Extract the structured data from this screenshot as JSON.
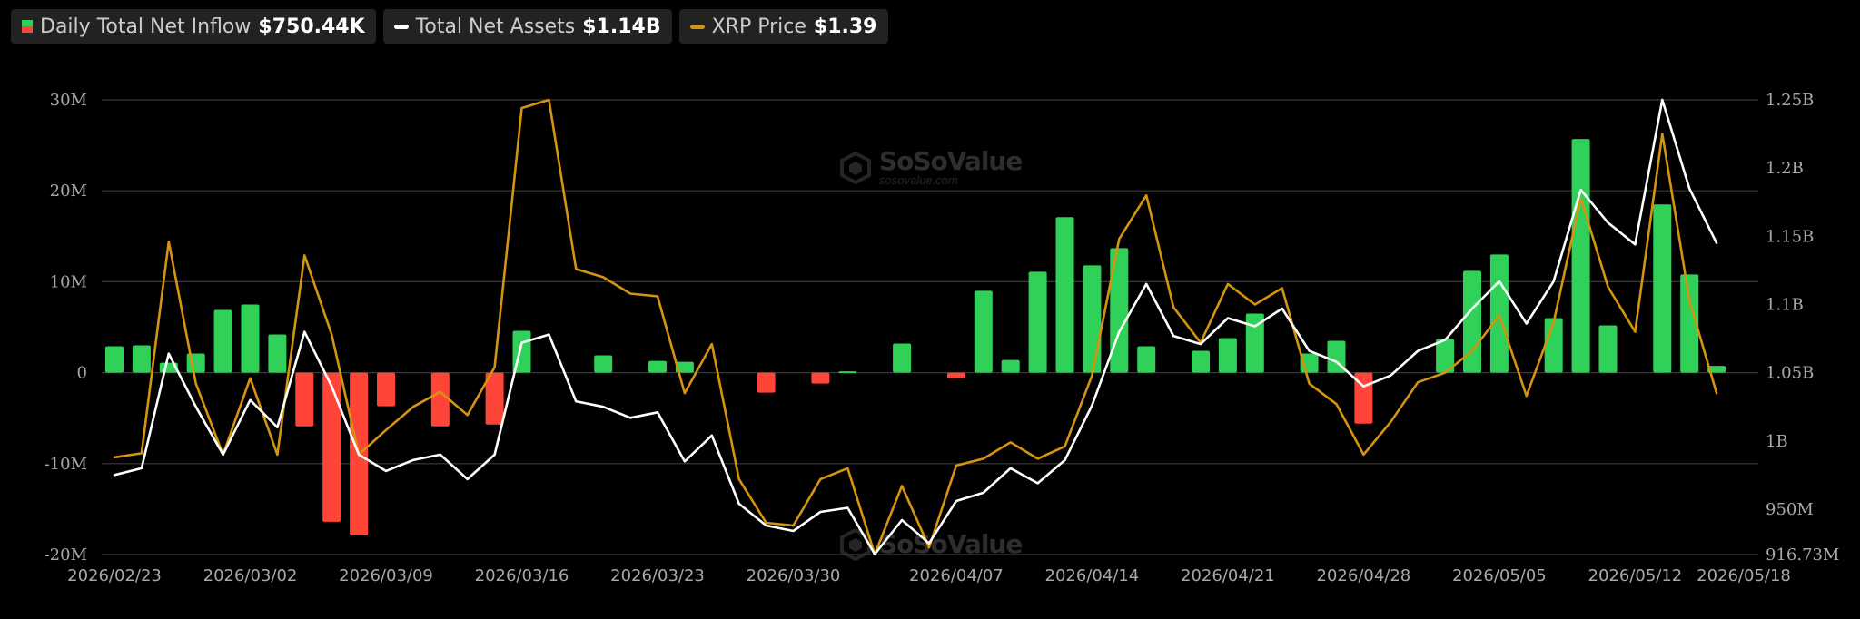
{
  "legend": {
    "inflow_label": "Daily Total Net Inflow",
    "inflow_value": "$750.44K",
    "assets_label": "Total Net Assets",
    "assets_value": "$1.14B",
    "price_label": "XRP Price",
    "price_value": "$1.39"
  },
  "watermark": {
    "name": "SoSoValue",
    "url": "sosovalue.com"
  },
  "colors": {
    "positive": "#2fd158",
    "negative": "#ff4438",
    "assets": "#ffffff",
    "price": "#d4940f",
    "grid": "#3a3a3a",
    "axis_text": "#a8a8a8"
  },
  "chart_data": {
    "type": "bar",
    "title": "",
    "x": [
      "2026/02/23",
      "2026/02/24",
      "2026/02/25",
      "2026/02/26",
      "2026/02/27",
      "2026/03/02",
      "2026/03/03",
      "2026/03/04",
      "2026/03/05",
      "2026/03/06",
      "2026/03/09",
      "2026/03/10",
      "2026/03/11",
      "2026/03/12",
      "2026/03/13",
      "2026/03/16",
      "2026/03/17",
      "2026/03/18",
      "2026/03/19",
      "2026/03/20",
      "2026/03/23",
      "2026/03/24",
      "2026/03/25",
      "2026/03/26",
      "2026/03/27",
      "2026/03/30",
      "2026/03/31",
      "2026/04/01",
      "2026/04/02",
      "2026/04/03",
      "2026/04/06",
      "2026/04/07",
      "2026/04/08",
      "2026/04/09",
      "2026/04/10",
      "2026/04/13",
      "2026/04/14",
      "2026/04/15",
      "2026/04/16",
      "2026/04/17",
      "2026/04/20",
      "2026/04/21",
      "2026/04/22",
      "2026/04/23",
      "2026/04/24",
      "2026/04/27",
      "2026/04/28",
      "2026/04/29",
      "2026/04/30",
      "2026/05/01",
      "2026/05/04",
      "2026/05/05",
      "2026/05/06",
      "2026/05/07",
      "2026/05/08",
      "2026/05/11",
      "2026/05/12",
      "2026/05/13",
      "2026/05/14",
      "2026/05/15",
      "2026/05/18"
    ],
    "x_ticks": [
      "2026/02/23",
      "2026/03/02",
      "2026/03/09",
      "2026/03/16",
      "2026/03/23",
      "2026/03/30",
      "2026/04/07",
      "2026/04/14",
      "2026/04/21",
      "2026/04/28",
      "2026/05/05",
      "2026/05/12",
      "2026/05/18"
    ],
    "left_axis": {
      "ylim": [
        -20000000,
        30000000
      ],
      "ticks": [
        "30M",
        "20M",
        "10M",
        "0",
        "-10M",
        "-20M"
      ]
    },
    "right_axis": {
      "ylim": [
        916730000,
        1250000000
      ],
      "ticks": [
        "1.25B",
        "1.2B",
        "1.15B",
        "1.1B",
        "1.05B",
        "1B",
        "950M",
        "916.73M"
      ]
    },
    "grid": true,
    "legend_position": "top-left",
    "series": [
      {
        "name": "Daily Total Net Inflow",
        "type": "bar",
        "axis": "left",
        "values": [
          2900000.0,
          3000000.0,
          1100000.0,
          2100000.0,
          6900000.0,
          7500000.0,
          4200000.0,
          -5900000.0,
          -16400000.0,
          -17900000.0,
          -3700000.0,
          null,
          -5900000.0,
          null,
          -5700000.0,
          4600000.0,
          null,
          null,
          1900000.0,
          null,
          1300000.0,
          1200000.0,
          null,
          null,
          -2200000.0,
          null,
          -1200000.0,
          150000.0,
          null,
          3200000.0,
          null,
          -600000.0,
          9000000.0,
          1400000.0,
          11100000.0,
          17100000.0,
          11800000.0,
          13700000.0,
          2900000.0,
          null,
          2400000.0,
          3800000.0,
          6500000.0,
          null,
          2100000.0,
          3500000.0,
          -5600000.0,
          null,
          null,
          3700000.0,
          11200000.0,
          13000000.0,
          null,
          6000000.0,
          25700000.0,
          5200000.0,
          null,
          18500000.0,
          10800000.0,
          750000.0,
          null
        ]
      },
      {
        "name": "Total Net Assets",
        "type": "line",
        "axis": "right",
        "values": [
          975000000.0,
          980000000.0,
          1064000000.0,
          1025000000.0,
          990000000.0,
          1030000000.0,
          1010000000.0,
          1080000000.0,
          1040000000.0,
          990000000.0,
          978000000.0,
          986000000.0,
          990000000.0,
          972000000.0,
          990000000.0,
          1072000000.0,
          1078000000.0,
          1029000000.0,
          1025000000.0,
          1017000000.0,
          1021000000.0,
          985000000.0,
          1004000000.0,
          954000000.0,
          938000000.0,
          934000000.0,
          948000000.0,
          951000000.0,
          917000000.0,
          942000000.0,
          925000000.0,
          956000000.0,
          962000000.0,
          980000000.0,
          969000000.0,
          986000000.0,
          1026000000.0,
          1080000000.0,
          1115000000.0,
          1077000000.0,
          1071000000.0,
          1090000000.0,
          1084000000.0,
          1097000000.0,
          1066000000.0,
          1058000000.0,
          1040000000.0,
          1048000000.0,
          1066000000.0,
          1074000000.0,
          1097000000.0,
          1117000000.0,
          1086000000.0,
          1117000000.0,
          1184000000.0,
          1160000000.0,
          1144000000.0,
          1250000000.0,
          1185000000.0,
          1145000000.0,
          null
        ]
      },
      {
        "name": "XRP Price",
        "type": "line",
        "axis": "right",
        "values": [
          988000000.0,
          991000000.0,
          1146000000.0,
          1042000000.0,
          990000000.0,
          1046000000.0,
          990000000.0,
          1136000000.0,
          1078000000.0,
          990000000.0,
          1008000000.0,
          1025000000.0,
          1036000000.0,
          1019000000.0,
          1054000000.0,
          1244000000.0,
          1250000000.0,
          1126000000.0,
          1120000000.0,
          1108000000.0,
          1106000000.0,
          1035000000.0,
          1071000000.0,
          972000000.0,
          940000000.0,
          938000000.0,
          972000000.0,
          980000000.0,
          917000000.0,
          967000000.0,
          922000000.0,
          982000000.0,
          987000000.0,
          999000000.0,
          987000000.0,
          996000000.0,
          1048000000.0,
          1148000000.0,
          1180000000.0,
          1098000000.0,
          1072000000.0,
          1115000000.0,
          1100000000.0,
          1112000000.0,
          1042000000.0,
          1027000000.0,
          990000000.0,
          1014000000.0,
          1043000000.0,
          1050000000.0,
          1066000000.0,
          1092000000.0,
          1033000000.0,
          1087000000.0,
          1178000000.0,
          1113000000.0,
          1080000000.0,
          1225000000.0,
          1103000000.0,
          1035000000.0,
          null
        ]
      }
    ]
  }
}
